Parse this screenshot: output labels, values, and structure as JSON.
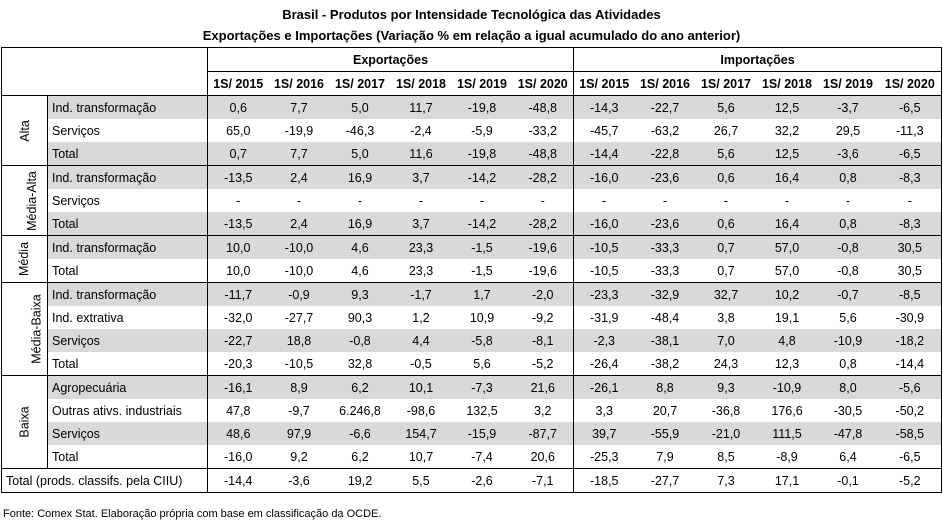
{
  "title": "Brasil - Produtos por Intensidade Tecnológica das Atividades",
  "subtitle": "Exportações e Importações (Variação % em relação a igual acumulado do ano anterior)",
  "header": {
    "exportacoes": "Exportações",
    "importacoes": "Importações",
    "years": [
      "1S/ 2015",
      "1S/ 2016",
      "1S/ 2017",
      "1S/ 2018",
      "1S/ 2019",
      "1S/ 2020"
    ]
  },
  "groups": [
    {
      "name": "Alta",
      "rows": [
        {
          "label": "Ind. transformação",
          "exp": [
            "0,6",
            "7,7",
            "5,0",
            "11,7",
            "-19,8",
            "-48,8"
          ],
          "imp": [
            "-14,3",
            "-22,7",
            "5,6",
            "12,5",
            "-3,7",
            "-6,5"
          ]
        },
        {
          "label": "Serviços",
          "exp": [
            "65,0",
            "-19,9",
            "-46,3",
            "-2,4",
            "-5,9",
            "-33,2"
          ],
          "imp": [
            "-45,7",
            "-63,2",
            "26,7",
            "32,2",
            "29,5",
            "-11,3"
          ]
        },
        {
          "label": "Total",
          "exp": [
            "0,7",
            "7,7",
            "5,0",
            "11,6",
            "-19,8",
            "-48,8"
          ],
          "imp": [
            "-14,4",
            "-22,8",
            "5,6",
            "12,5",
            "-3,6",
            "-6,5"
          ]
        }
      ]
    },
    {
      "name": "Média-Alta",
      "rows": [
        {
          "label": "Ind. transformação",
          "exp": [
            "-13,5",
            "2,4",
            "16,9",
            "3,7",
            "-14,2",
            "-28,2"
          ],
          "imp": [
            "-16,0",
            "-23,6",
            "0,6",
            "16,4",
            "0,8",
            "-8,3"
          ]
        },
        {
          "label": "Serviços",
          "exp": [
            "-",
            "-",
            "-",
            "-",
            "-",
            "-"
          ],
          "imp": [
            "-",
            "-",
            "-",
            "-",
            "-",
            "-"
          ]
        },
        {
          "label": "Total",
          "exp": [
            "-13,5",
            "2,4",
            "16,9",
            "3,7",
            "-14,2",
            "-28,2"
          ],
          "imp": [
            "-16,0",
            "-23,6",
            "0,6",
            "16,4",
            "0,8",
            "-8,3"
          ]
        }
      ]
    },
    {
      "name": "Média",
      "rows": [
        {
          "label": "Ind. transformação",
          "exp": [
            "10,0",
            "-10,0",
            "4,6",
            "23,3",
            "-1,5",
            "-19,6"
          ],
          "imp": [
            "-10,5",
            "-33,3",
            "0,7",
            "57,0",
            "-0,8",
            "30,5"
          ]
        },
        {
          "label": "Total",
          "exp": [
            "10,0",
            "-10,0",
            "4,6",
            "23,3",
            "-1,5",
            "-19,6"
          ],
          "imp": [
            "-10,5",
            "-33,3",
            "0,7",
            "57,0",
            "-0,8",
            "30,5"
          ]
        }
      ]
    },
    {
      "name": "Média-Baixa",
      "rows": [
        {
          "label": "Ind. transformação",
          "exp": [
            "-11,7",
            "-0,9",
            "9,3",
            "-1,7",
            "1,7",
            "-2,0"
          ],
          "imp": [
            "-23,3",
            "-32,9",
            "32,7",
            "10,2",
            "-0,7",
            "-8,5"
          ]
        },
        {
          "label": "Ind. extrativa",
          "exp": [
            "-32,0",
            "-27,7",
            "90,3",
            "1,2",
            "10,9",
            "-9,2"
          ],
          "imp": [
            "-31,9",
            "-48,4",
            "3,8",
            "19,1",
            "5,6",
            "-30,9"
          ]
        },
        {
          "label": "Serviços",
          "exp": [
            "-22,7",
            "18,8",
            "-0,8",
            "4,4",
            "-5,8",
            "-8,1"
          ],
          "imp": [
            "-2,3",
            "-38,1",
            "7,0",
            "4,8",
            "-10,9",
            "-18,2"
          ]
        },
        {
          "label": "Total",
          "exp": [
            "-20,3",
            "-10,5",
            "32,8",
            "-0,5",
            "5,6",
            "-5,2"
          ],
          "imp": [
            "-26,4",
            "-38,2",
            "24,3",
            "12,3",
            "0,8",
            "-14,4"
          ]
        }
      ]
    },
    {
      "name": "Baixa",
      "rows": [
        {
          "label": "Agropecuária",
          "exp": [
            "-16,1",
            "8,9",
            "6,2",
            "10,1",
            "-7,3",
            "21,6"
          ],
          "imp": [
            "-26,1",
            "8,8",
            "9,3",
            "-10,9",
            "8,0",
            "-5,6"
          ]
        },
        {
          "label": "Outras ativs. industriais",
          "exp": [
            "47,8",
            "-9,7",
            "6.246,8",
            "-98,6",
            "132,5",
            "3,2"
          ],
          "imp": [
            "3,3",
            "20,7",
            "-36,8",
            "176,6",
            "-30,5",
            "-50,2"
          ]
        },
        {
          "label": "Serviços",
          "exp": [
            "48,6",
            "97,9",
            "-6,6",
            "154,7",
            "-15,9",
            "-87,7"
          ],
          "imp": [
            "39,7",
            "-55,9",
            "-21,0",
            "111,5",
            "-47,8",
            "-58,5"
          ]
        },
        {
          "label": "Total",
          "exp": [
            "-16,0",
            "9,2",
            "6,2",
            "10,7",
            "-7,4",
            "20,6"
          ],
          "imp": [
            "-25,3",
            "7,9",
            "8,5",
            "-8,9",
            "6,4",
            "-6,5"
          ]
        }
      ]
    }
  ],
  "total_row": {
    "label": "Total (prods. classifs. pela CIIU)",
    "exp": [
      "-14,4",
      "-3,6",
      "19,2",
      "5,5",
      "-2,6",
      "-7,1"
    ],
    "imp": [
      "-18,5",
      "-27,7",
      "7,3",
      "17,1",
      "-0,1",
      "-5,2"
    ]
  },
  "fonte": "Fonte: Comex Stat. Elaboração própria com base em classificação da OCDE."
}
